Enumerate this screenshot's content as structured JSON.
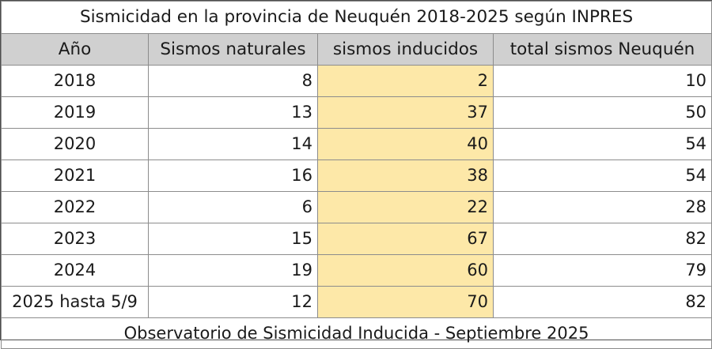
{
  "title": "Sismicidad en la provincia de Neuquén 2018-2025 según INPRES",
  "headers": {
    "year": "Año",
    "natural": "Sismos naturales",
    "induced": "sismos inducidos",
    "total": "total sismos Neuquén"
  },
  "rows": [
    {
      "year": "2018",
      "natural": "8",
      "induced": "2",
      "total": "10"
    },
    {
      "year": "2019",
      "natural": "13",
      "induced": "37",
      "total": "50"
    },
    {
      "year": "2020",
      "natural": "14",
      "induced": "40",
      "total": "54"
    },
    {
      "year": "2021",
      "natural": "16",
      "induced": "38",
      "total": "54"
    },
    {
      "year": "2022",
      "natural": "6",
      "induced": "22",
      "total": "28"
    },
    {
      "year": "2023",
      "natural": "15",
      "induced": "67",
      "total": "82"
    },
    {
      "year": "2024",
      "natural": "19",
      "induced": "60",
      "total": "79"
    },
    {
      "year": "2025 hasta 5/9",
      "natural": "12",
      "induced": "70",
      "total": "82"
    }
  ],
  "footer": "Observatorio de Sismicidad Inducida - Septiembre 2025",
  "colors": {
    "header_bg": "#d0d0d0",
    "induced_highlight": "#fde8a8"
  }
}
